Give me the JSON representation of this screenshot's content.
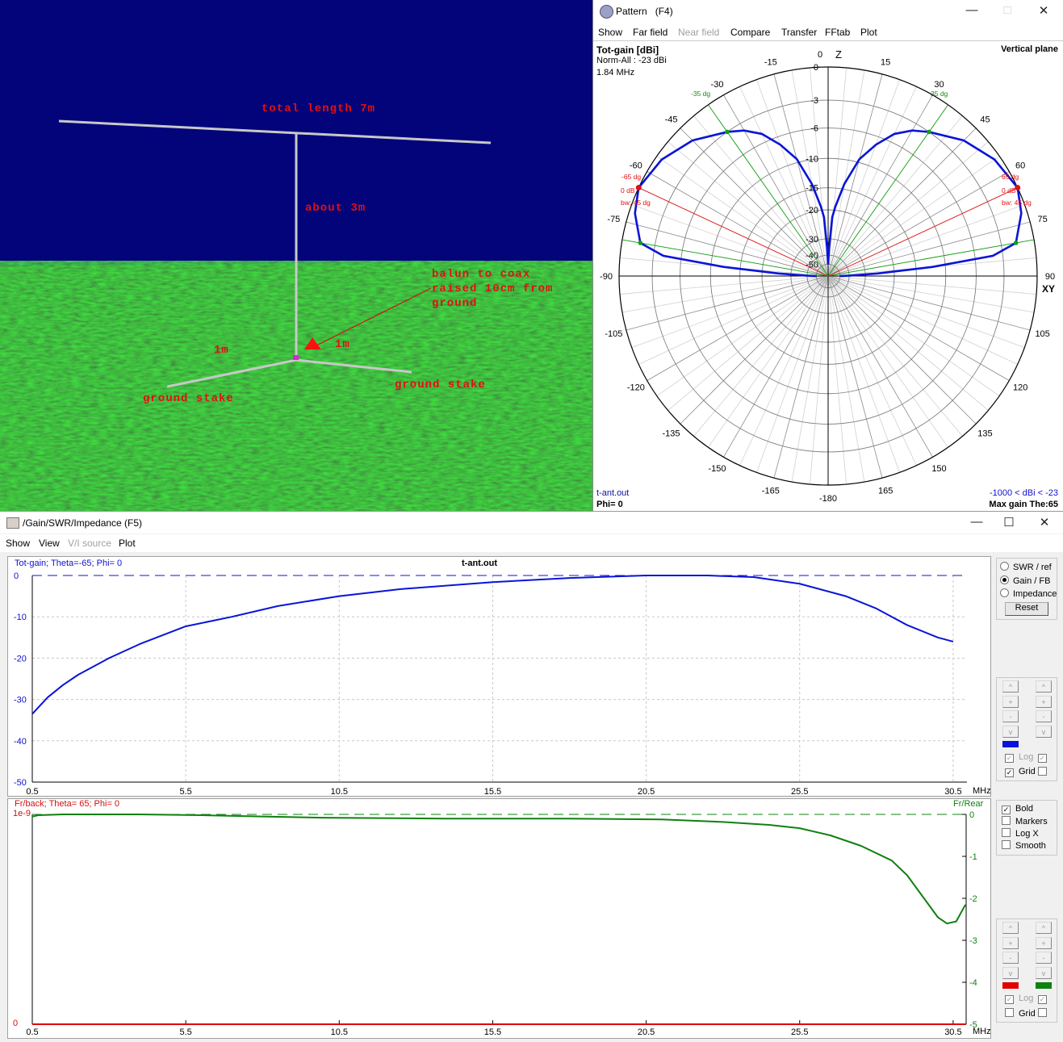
{
  "scene": {
    "labels": {
      "total_length": "total length 7m",
      "height": "about 3m",
      "balun": "balun to coax\nraised 10cm from\nground",
      "left_radial": "1m",
      "right_radial": "1m",
      "left_stake": "ground stake",
      "right_stake": "ground stake"
    },
    "colors": {
      "sky": "#03037a",
      "ground": "#1d5a1d",
      "label": "#e01010",
      "wire": "#c8c8c8",
      "feed": "#e020e0"
    }
  },
  "pattern_window": {
    "title": "Pattern   (F4)",
    "menu": [
      "Show",
      "Far field",
      "Near field",
      "Compare",
      "Transfer",
      "FFtab",
      "Plot"
    ],
    "menu_disabled": [
      false,
      false,
      true,
      false,
      false,
      false,
      false
    ],
    "gain_label": "Tot-gain [dBi]",
    "norm": "Norm-All : -23 dBi",
    "freq": "1.84 MHz",
    "plane": "Vertical plane",
    "file": "t-ant.out",
    "phi": "Phi= 0",
    "range": "-1000 < dBi < -23",
    "max_gain": "Max gain The:65",
    "z_label": "Z",
    "xy_label": "XY",
    "markers": {
      "left_beam": "-35 dg",
      "right_beam": "35 dg",
      "left_max": "-65 dg",
      "right_max": "65 dg",
      "max_db": "0 dB",
      "bw": "bw: 45 dg"
    }
  },
  "gain_window": {
    "title": "/Gain/SWR/Impedance (F5)",
    "menu": [
      "Show",
      "View",
      "V/I source",
      "Plot"
    ],
    "menu_disabled": [
      false,
      false,
      true,
      false
    ],
    "chart_title": "t-ant.out",
    "top_series_label": "Tot-gain; Theta=-65; Phi= 0",
    "bottom_series_label": "Fr/back; Theta= 65; Phi= 0",
    "bottom_right_label": "Fr/Rear",
    "bottom_left_top": "1e-9",
    "bottom_left_bottom": "0",
    "x_unit": "MHz",
    "modes": [
      {
        "label": "SWR / ref",
        "checked": false
      },
      {
        "label": "Gain / FB",
        "checked": true
      },
      {
        "label": "Impedance",
        "checked": false
      }
    ],
    "reset": "Reset",
    "step_buttons": [
      "^",
      "+",
      "-",
      "v"
    ],
    "log_label": "Log",
    "grid_label": "Grid",
    "options": [
      {
        "label": "Bold",
        "checked": true
      },
      {
        "label": "Markers",
        "checked": false
      },
      {
        "label": "Log X",
        "checked": false
      },
      {
        "label": "Smooth",
        "checked": false
      }
    ],
    "top_grid_checked": true,
    "bottom_grid_checked": false,
    "colors": {
      "gain": "#0a14d8",
      "fb_left": "#e00000",
      "fb_right": "#108010"
    }
  },
  "chart_data": [
    {
      "type": "polar",
      "title": "Tot-gain [dBi]",
      "angle_labels": [
        "0",
        "15",
        "30",
        "45",
        "60",
        "75",
        "90",
        "105",
        "120",
        "135",
        "150",
        "165",
        "-180",
        "-165",
        "-150",
        "-135",
        "-120",
        "-105",
        "-90",
        "-75",
        "-60",
        "-45",
        "-30",
        "-15"
      ],
      "ring_db": [
        0,
        -3,
        -6,
        -10,
        -15,
        -20,
        -30,
        -40,
        -50
      ],
      "theta": [
        0,
        2,
        4,
        6,
        10,
        15,
        20,
        25,
        30,
        35,
        45,
        55,
        65,
        72,
        76,
        80,
        83,
        85,
        87,
        89,
        90
      ],
      "gain_db": [
        -50,
        -35,
        -22,
        -19,
        -14,
        -9.5,
        -7,
        -5,
        -3.8,
        -3,
        -1.5,
        -0.5,
        0,
        -0.5,
        -1.1,
        -1.6,
        -4,
        -12,
        -25,
        -40,
        -50
      ],
      "markers": {
        "beam_3db": 35,
        "max": 65,
        "low": 80
      }
    },
    {
      "type": "line",
      "title": "t-ant.out",
      "series_name": "Tot-gain; Theta=-65; Phi= 0",
      "x_ticks": [
        "0.5",
        "5.5",
        "10.5",
        "15.5",
        "20.5",
        "25.5",
        "30.5"
      ],
      "y_ticks": [
        "0",
        "-10",
        "-20",
        "-30",
        "-40",
        "-50"
      ],
      "xlim": [
        0.5,
        31
      ],
      "ylim": [
        -50,
        0
      ],
      "xlabel": "MHz",
      "x": [
        0.5,
        1,
        1.5,
        2,
        3,
        4,
        5.5,
        7,
        8.5,
        10.5,
        12.5,
        15.5,
        18,
        20.5,
        22.5,
        24,
        25.5,
        27,
        28,
        29,
        30,
        30.5
      ],
      "y": [
        -33.5,
        -29.5,
        -26.5,
        -24,
        -20,
        -16.6,
        -12.3,
        -10,
        -7.4,
        -5,
        -3.3,
        -1.6,
        -0.6,
        0,
        0,
        -0.4,
        -2,
        -5,
        -8,
        -12,
        -15,
        -16
      ]
    },
    {
      "type": "line",
      "series_name": "Fr/back; Theta= 65; Phi= 0",
      "x_ticks": [
        "0.5",
        "5.5",
        "10.5",
        "15.5",
        "20.5",
        "25.5",
        "30.5"
      ],
      "y_ticks_right": [
        "0",
        "-1",
        "-2",
        "-3",
        "-4",
        "-5"
      ],
      "xlim": [
        0.5,
        31
      ],
      "ylim": [
        -5,
        0
      ],
      "xlabel": "MHz",
      "x": [
        0.5,
        0.7,
        1.5,
        4,
        6,
        8,
        10,
        14,
        18,
        21,
        23,
        24.5,
        25.5,
        26.5,
        27.5,
        28.5,
        29,
        29.5,
        30,
        30.3,
        30.6,
        30.9
      ],
      "y": [
        -0.05,
        -0.02,
        0,
        0,
        -0.02,
        -0.05,
        -0.08,
        -0.1,
        -0.1,
        -0.12,
        -0.18,
        -0.25,
        -0.33,
        -0.5,
        -0.75,
        -1.1,
        -1.45,
        -1.95,
        -2.45,
        -2.6,
        -2.55,
        -2.15
      ]
    }
  ]
}
